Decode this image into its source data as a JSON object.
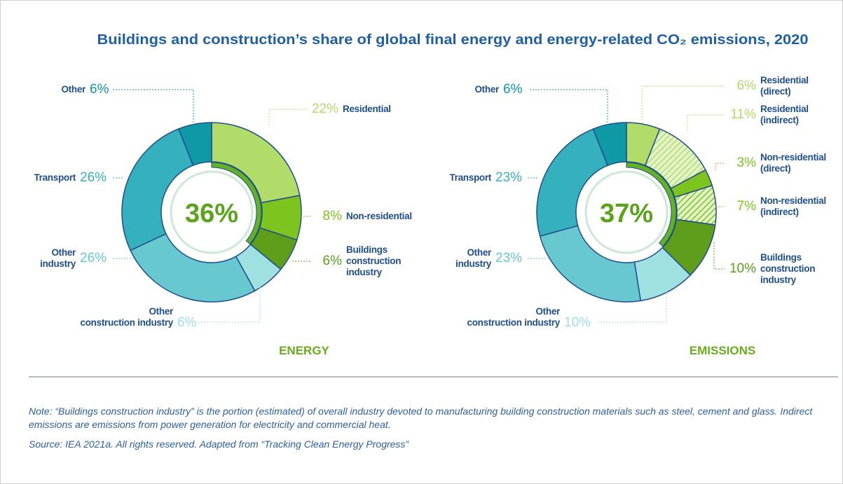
{
  "title": "Buildings and construction’s share of global final energy and energy-related CO₂ emissions, 2020",
  "chart_data": [
    {
      "type": "pie",
      "donut": true,
      "label": "ENERGY",
      "total": 36,
      "total_label": "36%",
      "categories": [
        "Residential",
        "Non-residential",
        "Buildings\nconstruction\nindustry",
        "Other\nconstruction industry",
        "Other\nindustry",
        "Transport",
        "Other"
      ],
      "values": [
        22,
        8,
        6,
        6,
        26,
        26,
        6
      ],
      "value_labels": [
        "22%",
        "8%",
        "6%",
        "6%",
        "26%",
        "26%",
        "6%"
      ],
      "colors": [
        "#b2dc6a",
        "#7dc41f",
        "#5e9e1b",
        "#9fe0e0",
        "#68c8cf",
        "#35b1bd",
        "#0f98a5"
      ],
      "hatched": [
        false,
        false,
        false,
        false,
        false,
        false,
        false
      ]
    },
    {
      "type": "pie",
      "donut": true,
      "label": "EMISSIONS",
      "total": 37,
      "total_label": "37%",
      "categories": [
        "Residential\n(direct)",
        "Residential\n(indirect)",
        "Non-residential\n(direct)",
        "Non-residential\n(indirect)",
        "Buildings\nconstruction\nindustry",
        "Other\nconstruction industry",
        "Other\nindustry",
        "Transport",
        "Other"
      ],
      "values": [
        6,
        11,
        3,
        7,
        10,
        10,
        23,
        23,
        6
      ],
      "value_labels": [
        "6%",
        "11%",
        "3%",
        "7%",
        "10%",
        "10%",
        "23%",
        "23%",
        "6%"
      ],
      "colors": [
        "#b2dc6a",
        "#b2dc6a",
        "#7dc41f",
        "#7dc41f",
        "#5e9e1b",
        "#9fe0e0",
        "#68c8cf",
        "#35b1bd",
        "#0f98a5"
      ],
      "hatched": [
        false,
        true,
        false,
        true,
        false,
        false,
        false,
        false,
        false
      ]
    }
  ],
  "note": "Note: “Buildings construction industry” is the portion (estimated) of overall industry devoted to manufacturing building construction materials such as steel, cement and glass. Indirect emissions are emissions from power generation for electricity and commercial heat.",
  "source": "Source: IEA 2021a. All rights reserved. Adapted from “Tracking Clean Energy Progress”"
}
